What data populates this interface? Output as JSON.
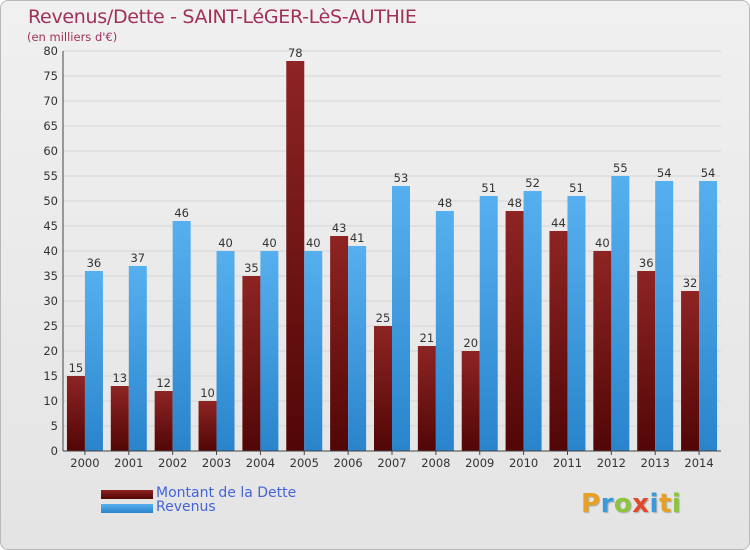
{
  "title": "Revenus/Dette - SAINT-LéGER-LèS-AUTHIE",
  "subtitle": "(en milliers d'€)",
  "brand": "Proxiti",
  "chart_data": {
    "type": "bar",
    "categories": [
      "2000",
      "2001",
      "2002",
      "2003",
      "2004",
      "2005",
      "2006",
      "2007",
      "2008",
      "2009",
      "2010",
      "2011",
      "2012",
      "2013",
      "2014"
    ],
    "series": [
      {
        "name": "Montant de la Dette",
        "color": "#7a1515",
        "values": [
          15,
          13,
          12,
          10,
          35,
          78,
          43,
          25,
          21,
          20,
          48,
          44,
          40,
          36,
          32
        ]
      },
      {
        "name": "Revenus",
        "color": "#3b9be4",
        "values": [
          36,
          37,
          46,
          40,
          40,
          40,
          41,
          53,
          48,
          51,
          52,
          51,
          55,
          54,
          54
        ]
      }
    ],
    "ylim": [
      0,
      80
    ],
    "yticks": [
      0,
      5,
      10,
      15,
      20,
      25,
      30,
      35,
      40,
      45,
      50,
      55,
      60,
      65,
      70,
      75,
      80
    ],
    "grid": true,
    "legend_position": "bottom-left"
  }
}
